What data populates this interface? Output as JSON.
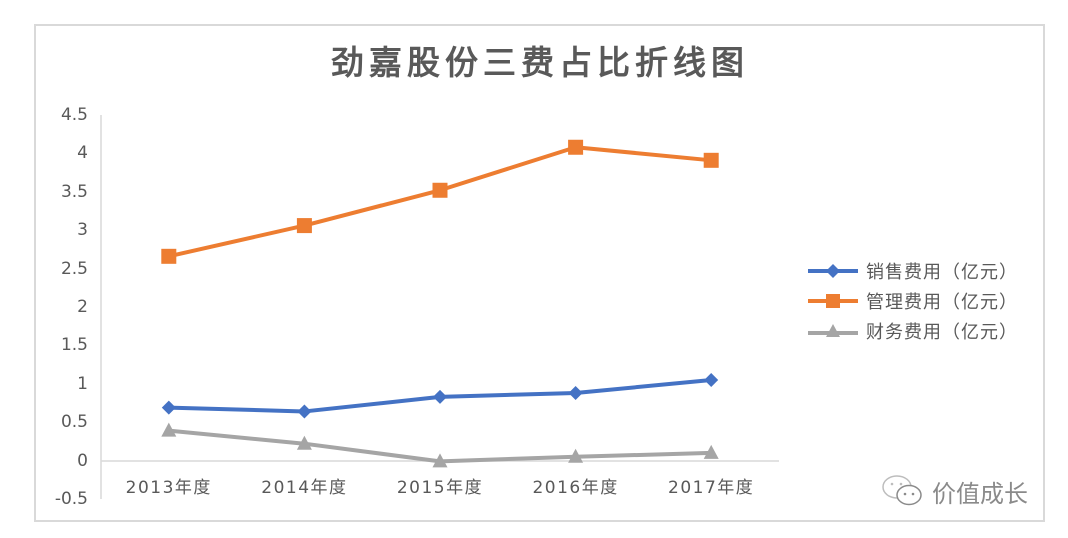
{
  "chart_data": {
    "type": "line",
    "title": "劲嘉股份三费占比折线图",
    "categories": [
      "2013年度",
      "2014年度",
      "2015年度",
      "2016年度",
      "2017年度"
    ],
    "series": [
      {
        "name": "销售费用（亿元）",
        "color": "#4472c4",
        "marker": "diamond",
        "values": [
          0.69,
          0.64,
          0.83,
          0.88,
          1.05
        ]
      },
      {
        "name": "管理费用（亿元）",
        "color": "#ed7d31",
        "marker": "square",
        "values": [
          2.66,
          3.06,
          3.52,
          4.08,
          3.91
        ]
      },
      {
        "name": "财务费用（亿元）",
        "color": "#a5a5a5",
        "marker": "triangle",
        "values": [
          0.39,
          0.22,
          -0.01,
          0.05,
          0.1
        ]
      }
    ],
    "xlabel": "",
    "ylabel": "",
    "ylim": [
      -0.5,
      4.5
    ],
    "yticks": [
      "4.5",
      "4",
      "3.5",
      "3",
      "2.5",
      "2",
      "1.5",
      "1",
      "0.5",
      "0",
      "-0.5"
    ],
    "grid": false,
    "legend_position": "right"
  },
  "watermark": {
    "icon": "wechat-icon",
    "text": "价值成长"
  }
}
